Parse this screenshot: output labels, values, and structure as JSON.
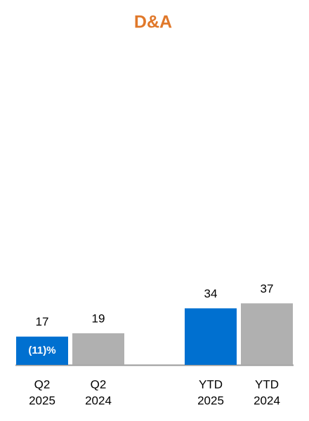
{
  "chart_data": {
    "type": "bar",
    "title": "D&A",
    "categories": [
      [
        "Q2",
        "2025"
      ],
      [
        "Q2",
        "2024"
      ],
      [
        "YTD",
        "2025"
      ],
      [
        "YTD",
        "2024"
      ]
    ],
    "values": [
      17,
      19,
      34,
      37
    ],
    "colors": [
      "#0070d0",
      "#b0b0b0",
      "#0070d0",
      "#b0b0b0"
    ],
    "bar_annotations": [
      "(11)%",
      null,
      null,
      null
    ]
  }
}
